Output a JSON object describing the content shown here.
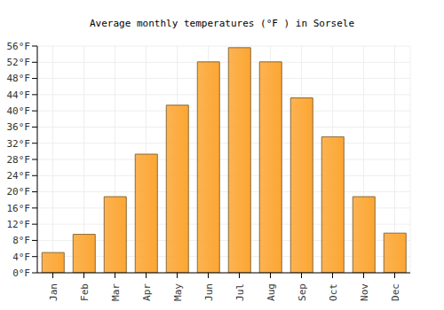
{
  "chart_data": {
    "type": "bar",
    "title": "Average monthly temperatures (°F ) in Sorsele",
    "categories": [
      "Jan",
      "Feb",
      "Mar",
      "Apr",
      "May",
      "Jun",
      "Jul",
      "Aug",
      "Sep",
      "Oct",
      "Nov",
      "Dec"
    ],
    "values": [
      5,
      9.5,
      18.8,
      29.3,
      41.4,
      52.1,
      55.6,
      52.1,
      43.2,
      33.6,
      18.8,
      9.8
    ],
    "color": "#fca633",
    "ylim": [
      0,
      56
    ],
    "yticks": [
      {
        "value": 0,
        "label": "0°F"
      },
      {
        "value": 4,
        "label": "4°F"
      },
      {
        "value": 8,
        "label": "8°F"
      },
      {
        "value": 12,
        "label": "12°F"
      },
      {
        "value": 16,
        "label": "16°F"
      },
      {
        "value": 20,
        "label": "20°F"
      },
      {
        "value": 24,
        "label": "24°F"
      },
      {
        "value": 28,
        "label": "28°F"
      },
      {
        "value": 32,
        "label": "32°F"
      },
      {
        "value": 36,
        "label": "36°F"
      },
      {
        "value": 40,
        "label": "40°F"
      },
      {
        "value": 44,
        "label": "44°F"
      },
      {
        "value": 48,
        "label": "48°F"
      },
      {
        "value": 52,
        "label": "52°F"
      },
      {
        "value": 56,
        "label": "56°F"
      }
    ],
    "grid": true
  }
}
